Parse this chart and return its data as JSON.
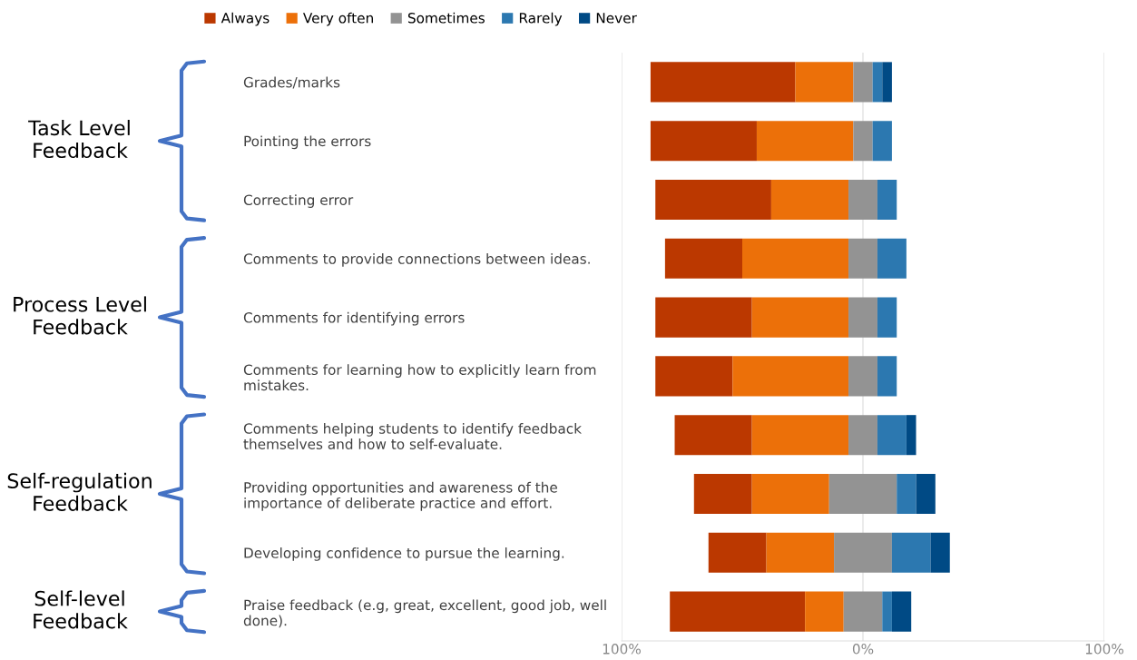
{
  "chart_data": {
    "type": "bar",
    "orientation": "horizontal",
    "categories": [
      "Grades/marks",
      "Pointing the errors",
      "Correcting error",
      "Comments to provide connections between ideas.",
      "Comments for identifying errors",
      "Comments for learning how to explicitly learn from\nmistakes.",
      "Comments helping students to identify feedback\nthemselves and how to self-evaluate.",
      "Providing opportunities and awareness of the\nimportance of deliberate practice and effort.",
      "Developing confidence to pursue the learning.",
      "Praise feedback (e.g, great, excellent, good job, well\ndone)."
    ],
    "series": [
      {
        "name": "Always",
        "color": "#bb3800",
        "base": [
          -88,
          -88,
          -86,
          -82,
          -86,
          -86,
          -78,
          -70,
          -64,
          -80
        ],
        "values": [
          60,
          44,
          48,
          32,
          40,
          32,
          32,
          24,
          24,
          56
        ]
      },
      {
        "name": "Very often",
        "color": "#ec7009",
        "base": [
          -28,
          -44,
          -38,
          -50,
          -46,
          -54,
          -46,
          -46,
          -40,
          -24
        ],
        "values": [
          24,
          40,
          32,
          44,
          40,
          48,
          40,
          32,
          28,
          16
        ]
      },
      {
        "name": "Sometimes",
        "color": "#939393",
        "base": [
          -4,
          -4,
          -6,
          -6,
          -6,
          -6,
          -6,
          -14,
          -12,
          -8
        ],
        "values": [
          8,
          8,
          12,
          12,
          12,
          12,
          12,
          28,
          24,
          16
        ]
      },
      {
        "name": "Rarely",
        "color": "#2c78b0",
        "base": [
          4,
          4,
          6,
          6,
          6,
          6,
          6,
          14,
          12,
          8
        ],
        "values": [
          4,
          8,
          8,
          12,
          8,
          8,
          12,
          8,
          16,
          4
        ]
      },
      {
        "name": "Never",
        "color": "#004a85",
        "base": [
          8,
          null,
          null,
          null,
          null,
          null,
          18,
          22,
          28,
          12
        ],
        "values": [
          4,
          null,
          null,
          null,
          null,
          null,
          4,
          8,
          8,
          8
        ]
      }
    ],
    "xlim": [
      -100,
      100
    ],
    "xticks": [
      {
        "value": -100,
        "label": "100%"
      },
      {
        "value": 0,
        "label": "0%"
      },
      {
        "value": 100,
        "label": "100%"
      }
    ],
    "grid": "x",
    "legend": "top",
    "annotations": [
      "Task Level\nFeedback",
      "Process Level\nFeedback",
      "Self-regulation\nFeedback",
      "Self-level\nFeedback"
    ]
  }
}
